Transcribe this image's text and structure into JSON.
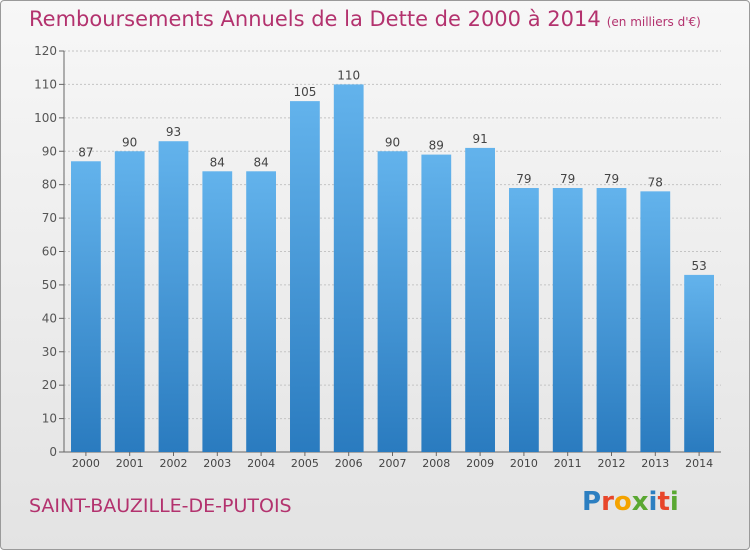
{
  "header": {
    "title": "Remboursements Annuels de la Dette de 2000 à 2014",
    "unit_note": "(en milliers d'€)"
  },
  "footer": {
    "place_name": "SAINT-BAUZILLE-DE-PUTOIS",
    "logo_letters": [
      "P",
      "r",
      "o",
      "x",
      "i",
      "t",
      "i"
    ],
    "logo_colors": [
      "#2c7fc1",
      "#e8462a",
      "#f4a300",
      "#5aa832",
      "#2c7fc1",
      "#e8462a",
      "#5aa832"
    ]
  },
  "colors": {
    "bar_top": "#63b3ec",
    "bar_bottom": "#2a7bbf",
    "title": "#b3326e"
  },
  "chart_data": {
    "type": "bar",
    "categories": [
      "2000",
      "2001",
      "2002",
      "2003",
      "2004",
      "2005",
      "2006",
      "2007",
      "2008",
      "2009",
      "2010",
      "2011",
      "2012",
      "2013",
      "2014"
    ],
    "values": [
      87,
      90,
      93,
      84,
      84,
      105,
      110,
      90,
      89,
      91,
      79,
      79,
      79,
      78,
      53
    ],
    "ylim": [
      0,
      120
    ],
    "yticks": [
      0,
      10,
      20,
      30,
      40,
      50,
      60,
      70,
      80,
      90,
      100,
      110,
      120
    ],
    "grid": true,
    "title": "Remboursements Annuels de la Dette de 2000 à 2014",
    "xlabel": "",
    "ylabel": ""
  }
}
